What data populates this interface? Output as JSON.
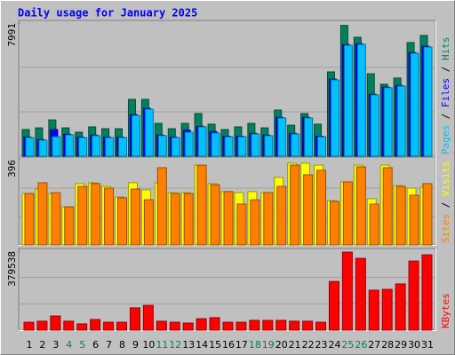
{
  "chart_data": [
    {
      "type": "bar",
      "title": "Daily usage for January 2025",
      "legend_separator": "/",
      "ylim": [
        0,
        7991
      ],
      "yticks": [
        7991
      ],
      "series": [
        {
          "name": "Hits",
          "color": "#00805c",
          "values": [
            1600,
            1700,
            2180,
            1700,
            1440,
            1760,
            1650,
            1650,
            3410,
            3410,
            1970,
            1650,
            1970,
            2560,
            1920,
            1600,
            1760,
            1970,
            1700,
            2770,
            1860,
            2560,
            1920,
            5060,
            7850,
            7140,
            4950,
            4320,
            4690,
            6820,
            7250
          ]
        },
        {
          "name": "Files",
          "color": "#0000ff",
          "values": [
            1150,
            1000,
            1600,
            1320,
            1150,
            1270,
            1150,
            1150,
            2500,
            2870,
            1270,
            1150,
            1560,
            1800,
            1480,
            1200,
            1200,
            1370,
            1270,
            2330,
            1370,
            2330,
            1200,
            4630,
            6700,
            6750,
            3720,
            4150,
            4250,
            6220,
            6600
          ]
        },
        {
          "name": "Pages",
          "color": "#00c0ff",
          "values": [
            1120,
            960,
            1170,
            1280,
            1120,
            1230,
            1120,
            1120,
            2450,
            2820,
            1230,
            1120,
            1440,
            1760,
            1390,
            1170,
            1170,
            1330,
            1230,
            2290,
            1330,
            2290,
            1170,
            4580,
            6660,
            6710,
            3680,
            4110,
            4210,
            6180,
            6550
          ]
        }
      ]
    },
    {
      "type": "bar",
      "legend_separator": "/",
      "ylim": [
        0,
        396
      ],
      "yticks": [
        396
      ],
      "series": [
        {
          "name": "Visits",
          "color": "#ffff00",
          "values": [
            239,
            260,
            239,
            177,
            285,
            289,
            272,
            223,
            289,
            256,
            289,
            243,
            243,
            371,
            285,
            248,
            243,
            248,
            243,
            314,
            380,
            380,
            371,
            206,
            293,
            371,
            215,
            371,
            276,
            264,
            268
          ]
        },
        {
          "name": "Sites",
          "color": "#ff8000",
          "values": [
            239,
            289,
            243,
            177,
            272,
            285,
            264,
            219,
            260,
            210,
            359,
            239,
            239,
            371,
            280,
            248,
            190,
            210,
            243,
            272,
            371,
            326,
            347,
            202,
            293,
            363,
            190,
            359,
            272,
            231,
            285
          ]
        }
      ]
    },
    {
      "type": "bar",
      "ylim": [
        0,
        379538
      ],
      "yticks": [
        379538
      ],
      "categories": [
        "1",
        "2",
        "3",
        "4",
        "5",
        "6",
        "7",
        "8",
        "9",
        "10",
        "11",
        "12",
        "13",
        "14",
        "15",
        "16",
        "17",
        "18",
        "19",
        "20",
        "21",
        "22",
        "23",
        "24",
        "25",
        "26",
        "27",
        "28",
        "29",
        "30",
        "31"
      ],
      "category_colors": [
        "#000000",
        "#000000",
        "#000000",
        "#00805c",
        "#00805c",
        "#000000",
        "#000000",
        "#000000",
        "#000000",
        "#000000",
        "#00805c",
        "#00805c",
        "#000000",
        "#000000",
        "#000000",
        "#000000",
        "#000000",
        "#00805c",
        "#00805c",
        "#000000",
        "#000000",
        "#000000",
        "#000000",
        "#000000",
        "#00805c",
        "#00805c",
        "#000000",
        "#000000",
        "#000000",
        "#000000",
        "#000000"
      ],
      "series": [
        {
          "name": "KBytes",
          "color": "#ff0000",
          "values": [
            38000,
            43000,
            68000,
            43000,
            30000,
            51000,
            38000,
            38000,
            107000,
            119000,
            43000,
            38000,
            34000,
            55000,
            60000,
            38000,
            38000,
            47000,
            47000,
            47000,
            43000,
            43000,
            38000,
            234000,
            375000,
            345000,
            192000,
            196000,
            222000,
            332000,
            362000
          ]
        }
      ]
    }
  ]
}
